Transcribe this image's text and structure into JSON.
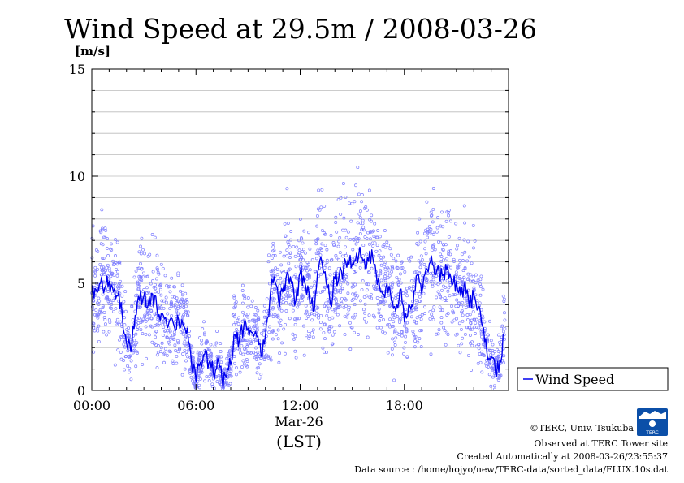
{
  "title": "Wind Speed at 29.5m / 2008-03-26",
  "chart_data": {
    "type": "line",
    "title": "Wind Speed at 29.5m / 2008-03-26",
    "ylabel": "[m/s]",
    "xlabel": "(LST)",
    "date_label": "Mar-26",
    "ylim": [
      0,
      15
    ],
    "xlim_hours": [
      0,
      24
    ],
    "yticks": [
      "0",
      "5",
      "10",
      "15"
    ],
    "xticks": [
      "00:00",
      "06:00",
      "12:00",
      "18:00"
    ],
    "grid": true,
    "legend_position": "right",
    "colors": {
      "line": "#0000ee",
      "points": "#8080ff"
    },
    "series": [
      {
        "name": "Wind Speed",
        "hours": [
          0.0,
          0.25,
          0.5,
          0.75,
          1.0,
          1.25,
          1.5,
          1.75,
          2.0,
          2.25,
          2.5,
          2.75,
          3.0,
          3.25,
          3.5,
          3.75,
          4.0,
          4.25,
          4.5,
          4.75,
          5.0,
          5.25,
          5.5,
          5.75,
          6.0,
          6.25,
          6.5,
          6.75,
          7.0,
          7.25,
          7.5,
          7.75,
          8.0,
          8.25,
          8.5,
          8.75,
          9.0,
          9.25,
          9.5,
          9.75,
          10.0,
          10.25,
          10.5,
          10.75,
          11.0,
          11.25,
          11.5,
          11.75,
          12.0,
          12.25,
          12.5,
          12.75,
          13.0,
          13.25,
          13.5,
          13.75,
          14.0,
          14.25,
          14.5,
          14.75,
          15.0,
          15.25,
          15.5,
          15.75,
          16.0,
          16.25,
          16.5,
          16.75,
          17.0,
          17.25,
          17.5,
          17.75,
          18.0,
          18.25,
          18.5,
          18.75,
          19.0,
          19.25,
          19.5,
          19.75,
          20.0,
          20.25,
          20.5,
          20.75,
          21.0,
          21.25,
          21.5,
          21.75,
          22.0,
          22.25,
          22.5,
          22.75,
          23.0,
          23.25,
          23.5,
          23.75
        ],
        "values": [
          4.5,
          4.7,
          5.0,
          4.8,
          5.1,
          4.6,
          4.4,
          3.6,
          2.2,
          1.8,
          3.5,
          4.2,
          4.4,
          4.0,
          4.5,
          3.8,
          3.6,
          3.4,
          3.3,
          3.0,
          3.3,
          3.1,
          2.9,
          1.2,
          0.4,
          1.3,
          1.7,
          1.3,
          0.8,
          1.5,
          0.5,
          0.6,
          1.2,
          2.6,
          2.4,
          3.0,
          2.9,
          2.7,
          2.5,
          1.6,
          2.6,
          4.2,
          5.3,
          4.2,
          4.6,
          5.5,
          5.0,
          4.2,
          5.5,
          5.1,
          4.6,
          3.7,
          5.5,
          6.0,
          5.0,
          4.0,
          5.2,
          5.4,
          5.7,
          6.1,
          5.9,
          6.4,
          6.2,
          5.7,
          6.5,
          5.9,
          5.2,
          4.5,
          5.0,
          4.2,
          3.7,
          4.7,
          3.2,
          4.0,
          3.9,
          5.4,
          4.5,
          5.7,
          6.0,
          5.4,
          5.6,
          5.4,
          5.8,
          4.9,
          5.1,
          4.4,
          5.1,
          3.9,
          4.4,
          3.8,
          3.0,
          1.8,
          1.6,
          0.8,
          1.4,
          2.6
        ]
      }
    ]
  },
  "credits": {
    "copyright": "©TERC, Univ. Tsukuba",
    "observed": "Observed at TERC Tower site",
    "created": "Created Automatically at 2008-03-26/23:55:37",
    "source": "Data source : /home/hojyo/new/TERC-data/sorted_data/FLUX.10s.dat"
  },
  "logo_text": "TERC"
}
